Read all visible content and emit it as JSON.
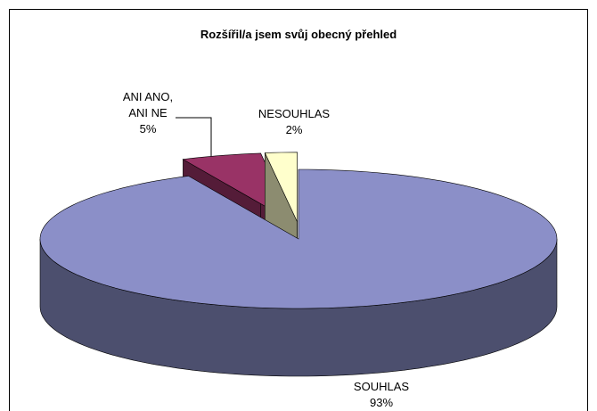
{
  "chart_data": {
    "type": "pie3d",
    "title": "Rozšířil/a jsem svůj obecný přehled",
    "categories": [
      "SOUHLAS",
      "ANI ANO, ANI NE",
      "NESOUHLAS"
    ],
    "values": [
      93,
      5,
      2
    ],
    "value_labels": [
      "93%",
      "5%",
      "2%"
    ],
    "colors": [
      "#8b8fc8",
      "#993366",
      "#ffffcc"
    ]
  }
}
